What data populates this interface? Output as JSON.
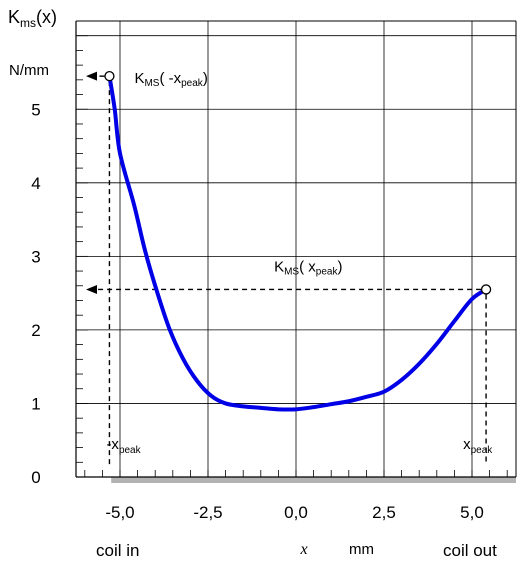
{
  "chart_data": {
    "type": "line",
    "ylabel": {
      "base": "K",
      "sub": "ms",
      "suffix": "(x)"
    },
    "yunit": "N/mm",
    "xlabel_var": "x",
    "xunit": "mm",
    "xlabel_left": "coil in",
    "xlabel_right": "coil out",
    "xlim": [
      -6.25,
      6.25
    ],
    "ylim": [
      0,
      6.2
    ],
    "x_ticks": [
      -5.0,
      -2.5,
      0.0,
      2.5,
      5.0
    ],
    "x_tick_labels": [
      "-5,0",
      "-2,5",
      "0,0",
      "2,5",
      "5,0"
    ],
    "y_ticks": [
      0,
      1,
      2,
      3,
      4,
      5
    ],
    "y_tick_labels": [
      "0",
      "1",
      "2",
      "3",
      "4",
      "5"
    ],
    "grid": true,
    "line_color": "#0000e6",
    "series": [
      {
        "x": [
          -5.3,
          -5.15,
          -5.0,
          -4.6,
          -4.3,
          -4.0,
          -3.6,
          -3.2,
          -2.8,
          -2.4,
          -2.0,
          -1.5,
          -1.0,
          -0.5,
          0.0,
          0.5,
          1.0,
          1.5,
          2.0,
          2.5,
          3.0,
          3.5,
          4.0,
          4.5,
          5.0,
          5.4
        ],
        "y": [
          5.45,
          5.0,
          4.4,
          3.7,
          3.1,
          2.6,
          2.02,
          1.6,
          1.3,
          1.1,
          1.0,
          0.96,
          0.94,
          0.92,
          0.92,
          0.95,
          0.99,
          1.03,
          1.09,
          1.16,
          1.32,
          1.54,
          1.81,
          2.12,
          2.42,
          2.55
        ]
      }
    ],
    "annotations": [
      {
        "id": "left-peak",
        "x": -5.3,
        "y": 5.45,
        "label_base": "K",
        "label_sub": "MS",
        "label_arg": "( -x",
        "label_arg_sub": "peak",
        "label_close": ")",
        "xlabel": "-x",
        "xlabel_sub": "peak"
      },
      {
        "id": "right-peak",
        "x": 5.4,
        "y": 2.55,
        "label_base": "K",
        "label_sub": "MS",
        "label_arg": "( x",
        "label_arg_sub": "peak",
        "label_close": ")",
        "xlabel": "x",
        "xlabel_sub": "peak"
      }
    ]
  }
}
